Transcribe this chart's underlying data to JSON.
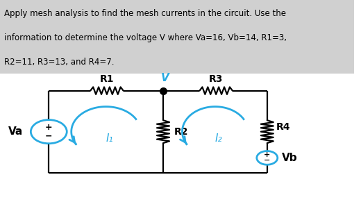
{
  "title_line1": "Apply mesh analysis to find the mesh currents in the circuit. Use the",
  "title_line2": "information to determine the voltage V where Va=16, Vb=14, R1=3,",
  "title_line3": "R2=11, R3=13, and R4=7.",
  "title_bg": "#d0d0d0",
  "circuit_color": "#000000",
  "blue_color": "#29ABE2",
  "Va_label": "Va",
  "Vb_label": "Vb",
  "R1_label": "R1",
  "R2_label": "R2",
  "R3_label": "R3",
  "R4_label": "R4",
  "V_label": "V",
  "I1_label": "I₁",
  "I2_label": "I₂",
  "fig_width": 5.2,
  "fig_height": 2.91,
  "dpi": 100
}
